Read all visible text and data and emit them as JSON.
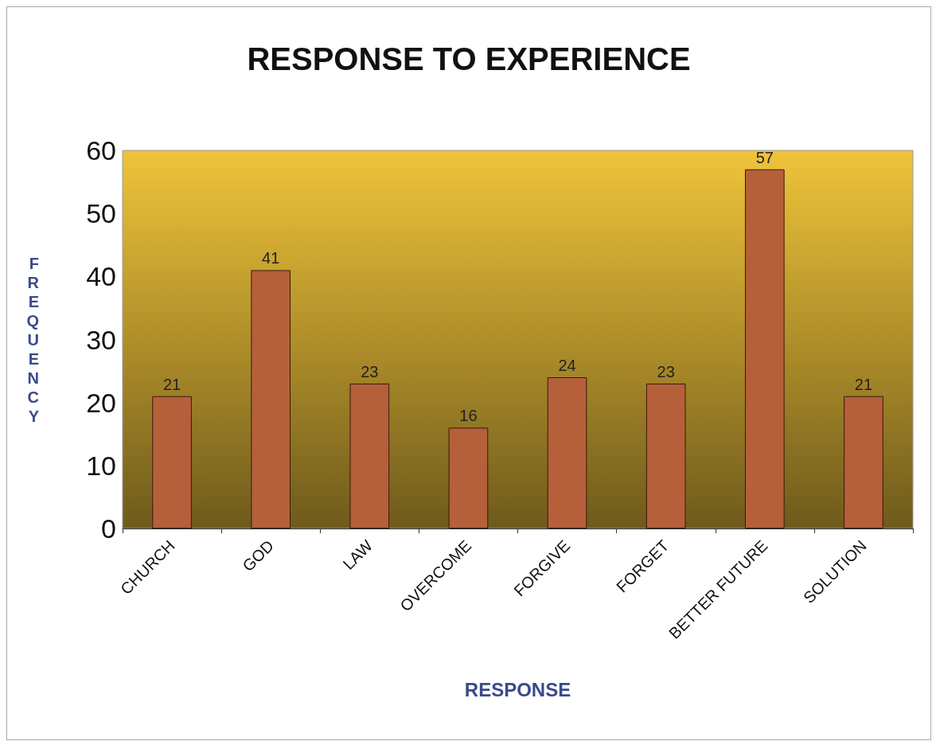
{
  "chart_data": {
    "type": "bar",
    "title": "RESPONSE TO EXPERIENCE",
    "xlabel": "RESPONSE",
    "ylabel": "FREQUENCY",
    "categories": [
      "CHURCH",
      "GOD",
      "LAW",
      "OVERCOME",
      "FORGIVE",
      "FORGET",
      "BETTER FUTURE",
      "SOLUTION"
    ],
    "values": [
      21,
      41,
      23,
      16,
      24,
      23,
      57,
      21
    ],
    "color": "#b5603a",
    "ylim": [
      0,
      60
    ],
    "yticks": [
      0,
      10,
      20,
      30,
      40,
      50,
      60
    ],
    "grid": false,
    "data_labels": true
  }
}
